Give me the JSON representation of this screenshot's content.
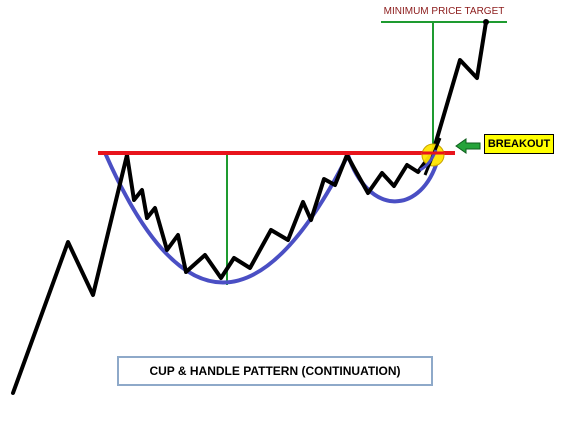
{
  "labels": {
    "minimum_price_target": "MINIMUM PRICE TARGET",
    "breakout": "BREAKOUT",
    "title": "CUP & HANDLE PATTERN (CONTINUATION)"
  },
  "colors": {
    "price_line": "#000000",
    "cup_curve": "#4a4fc4",
    "resistance": "#e8141c",
    "measurement": "#1e9b30",
    "arrow": "#25a33a",
    "breakout_circle": "#ffe600",
    "breakout_label_bg": "#ffff00",
    "target_text": "#8b1a1a",
    "title_border": "#8ea9c9"
  }
}
